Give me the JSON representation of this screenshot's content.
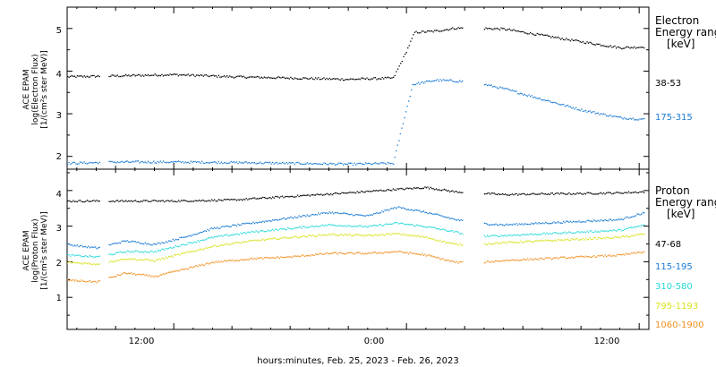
{
  "xlabel": "hours:minutes, Feb. 25, 2023 - Feb. 26, 2023",
  "x_ticks": [
    "12:00",
    "0:00",
    "12:00"
  ],
  "chart_data": [
    {
      "type": "scatter",
      "panel": "electron",
      "ylabel_lines": [
        "ACE EPAM",
        "log(Electron Flux)",
        "[1/(cm²s ster MeV)]"
      ],
      "ylim": [
        1.7,
        5.5
      ],
      "y_ticks": [
        "2",
        "3",
        "4",
        "5"
      ],
      "x_unit": "hours since Feb. 25, 2023 00:00",
      "xlim": [
        6.5,
        36.5
      ],
      "legend_title_lines": [
        "Electron",
        "Energy ranges",
        "[keV]"
      ],
      "series": [
        {
          "name": "38-53",
          "color": "#000000",
          "points": [
            [
              6.5,
              3.88
            ],
            [
              9,
              3.9
            ],
            [
              12,
              3.93
            ],
            [
              15,
              3.88
            ],
            [
              18,
              3.85
            ],
            [
              21,
              3.82
            ],
            [
              23.3,
              3.85
            ],
            [
              23.9,
              4.4
            ],
            [
              24.4,
              4.92
            ],
            [
              25.5,
              4.95
            ],
            [
              26.5,
              5.02
            ],
            [
              27.5,
              5.02
            ],
            [
              29,
              5.0
            ],
            [
              31,
              4.85
            ],
            [
              33,
              4.7
            ],
            [
              35,
              4.56
            ],
            [
              36.3,
              4.58
            ]
          ]
        },
        {
          "name": "175-315",
          "color": "#1a7ad4",
          "points": [
            [
              6.5,
              1.85
            ],
            [
              9,
              1.88
            ],
            [
              12,
              1.88
            ],
            [
              15,
              1.87
            ],
            [
              18,
              1.85
            ],
            [
              21,
              1.83
            ],
            [
              23.3,
              1.85
            ],
            [
              23.8,
              2.8
            ],
            [
              24.3,
              3.7
            ],
            [
              25.5,
              3.8
            ],
            [
              26.5,
              3.78
            ],
            [
              27.5,
              3.75
            ],
            [
              29,
              3.6
            ],
            [
              31,
              3.35
            ],
            [
              33,
              3.1
            ],
            [
              35,
              2.92
            ],
            [
              36.3,
              2.88
            ]
          ]
        }
      ]
    },
    {
      "type": "scatter",
      "panel": "proton",
      "ylabel_lines": [
        "ACE EPAM",
        "log(Proton Flux)",
        "[1/(cm²s ster MeV)]"
      ],
      "ylim": [
        0.1,
        4.6
      ],
      "y_ticks": [
        "1",
        "2",
        "3",
        "4"
      ],
      "x_unit": "hours since Feb. 25, 2023 00:00",
      "xlim": [
        6.5,
        36.5
      ],
      "legend_title_lines": [
        "Proton",
        "Energy ranges",
        "[keV]"
      ],
      "series": [
        {
          "name": "47-68",
          "color": "#000000",
          "points": [
            [
              6.5,
              3.72
            ],
            [
              9,
              3.72
            ],
            [
              12,
              3.72
            ],
            [
              15,
              3.75
            ],
            [
              18,
              3.85
            ],
            [
              21,
              3.95
            ],
            [
              23.5,
              4.05
            ],
            [
              25,
              4.1
            ],
            [
              26.5,
              3.98
            ],
            [
              27.5,
              3.95
            ],
            [
              29,
              3.9
            ],
            [
              31,
              3.92
            ],
            [
              33,
              3.93
            ],
            [
              35,
              3.95
            ],
            [
              36.3,
              3.98
            ]
          ]
        },
        {
          "name": "115-195",
          "color": "#1a7ad4",
          "points": [
            [
              6.5,
              2.5
            ],
            [
              8,
              2.4
            ],
            [
              9.5,
              2.6
            ],
            [
              11,
              2.5
            ],
            [
              12.5,
              2.7
            ],
            [
              14,
              2.95
            ],
            [
              16,
              3.1
            ],
            [
              18,
              3.25
            ],
            [
              20,
              3.4
            ],
            [
              22,
              3.3
            ],
            [
              23.5,
              3.55
            ],
            [
              25,
              3.4
            ],
            [
              26.5,
              3.2
            ],
            [
              27.5,
              3.1
            ],
            [
              29,
              3.05
            ],
            [
              31,
              3.1
            ],
            [
              33,
              3.15
            ],
            [
              35,
              3.2
            ],
            [
              36.3,
              3.4
            ]
          ]
        },
        {
          "name": "310-580",
          "color": "#28d8d8",
          "points": [
            [
              6.5,
              2.2
            ],
            [
              8,
              2.15
            ],
            [
              9.5,
              2.3
            ],
            [
              11,
              2.3
            ],
            [
              12.5,
              2.5
            ],
            [
              14,
              2.7
            ],
            [
              16,
              2.85
            ],
            [
              18,
              2.95
            ],
            [
              20,
              3.05
            ],
            [
              22,
              3.0
            ],
            [
              23.5,
              3.1
            ],
            [
              25,
              3.0
            ],
            [
              26.5,
              2.85
            ],
            [
              27.5,
              2.72
            ],
            [
              29,
              2.75
            ],
            [
              31,
              2.8
            ],
            [
              33,
              2.85
            ],
            [
              35,
              2.9
            ],
            [
              36.3,
              3.05
            ]
          ]
        },
        {
          "name": "795-1193",
          "color": "#d8e21e",
          "points": [
            [
              6.5,
              2.0
            ],
            [
              8,
              1.95
            ],
            [
              9.5,
              2.1
            ],
            [
              11,
              2.05
            ],
            [
              12.5,
              2.25
            ],
            [
              14,
              2.45
            ],
            [
              16,
              2.6
            ],
            [
              18,
              2.7
            ],
            [
              20,
              2.78
            ],
            [
              22,
              2.75
            ],
            [
              23.5,
              2.8
            ],
            [
              25,
              2.7
            ],
            [
              26.5,
              2.5
            ],
            [
              27.5,
              2.5
            ],
            [
              29,
              2.55
            ],
            [
              31,
              2.6
            ],
            [
              33,
              2.65
            ],
            [
              35,
              2.7
            ],
            [
              36.3,
              2.8
            ]
          ]
        },
        {
          "name": "1060-1900",
          "color": "#f0901e",
          "points": [
            [
              6.5,
              1.5
            ],
            [
              8,
              1.45
            ],
            [
              9.5,
              1.7
            ],
            [
              11,
              1.6
            ],
            [
              12.5,
              1.8
            ],
            [
              14,
              2.0
            ],
            [
              16,
              2.1
            ],
            [
              18,
              2.15
            ],
            [
              20,
              2.25
            ],
            [
              22,
              2.25
            ],
            [
              23.5,
              2.3
            ],
            [
              25,
              2.2
            ],
            [
              26.5,
              2.0
            ],
            [
              27.5,
              1.98
            ],
            [
              29,
              2.05
            ],
            [
              31,
              2.1
            ],
            [
              33,
              2.15
            ],
            [
              35,
              2.2
            ],
            [
              36.3,
              2.3
            ]
          ]
        }
      ]
    }
  ]
}
